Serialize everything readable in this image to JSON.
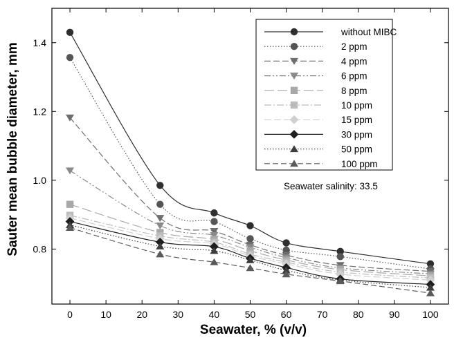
{
  "chart_data": {
    "type": "line",
    "xlabel": "Seawater, % (v/v)",
    "ylabel": "Sauter mean bubble diameter, mm",
    "xlim": [
      -5,
      105
    ],
    "ylim": [
      0.64,
      1.5
    ],
    "xticks": [
      0,
      10,
      20,
      30,
      40,
      50,
      60,
      70,
      80,
      90,
      100
    ],
    "yticks": [
      0.8,
      1.0,
      1.2,
      1.4
    ],
    "x": [
      0,
      25,
      40,
      50,
      60,
      75,
      100
    ],
    "grid": false,
    "legend_position": "top-right",
    "annotation": "Seawater salinity: 33.5",
    "series": [
      {
        "name": "without MIBC",
        "values": [
          1.43,
          0.985,
          0.905,
          0.868,
          0.818,
          0.793,
          0.757
        ],
        "color": "#2f2f2f",
        "marker": "circle",
        "dash": ""
      },
      {
        "name": "2 ppm",
        "values": [
          1.357,
          0.93,
          0.88,
          0.83,
          0.797,
          0.778,
          0.742
        ],
        "color": "#555555",
        "marker": "circle",
        "dash": "1.5,2.5"
      },
      {
        "name": "4 ppm",
        "values": [
          1.182,
          0.89,
          0.852,
          0.812,
          0.782,
          0.753,
          0.735
        ],
        "color": "#6e6e6e",
        "marker": "triangle-down",
        "dash": "9,4"
      },
      {
        "name": "6 ppm",
        "values": [
          1.028,
          0.868,
          0.84,
          0.805,
          0.775,
          0.745,
          0.728
        ],
        "color": "#8a8a8a",
        "marker": "triangle-down",
        "dash": "9,3,2,3,2,3"
      },
      {
        "name": "8 ppm",
        "values": [
          0.93,
          0.848,
          0.828,
          0.795,
          0.768,
          0.74,
          0.722
        ],
        "color": "#a8a8a8",
        "marker": "square",
        "dash": "14,5"
      },
      {
        "name": "10 ppm",
        "values": [
          0.898,
          0.838,
          0.82,
          0.785,
          0.762,
          0.733,
          0.716
        ],
        "color": "#bcbcbc",
        "marker": "square",
        "dash": "10,3,2,3"
      },
      {
        "name": "15 ppm",
        "values": [
          0.89,
          0.83,
          0.815,
          0.78,
          0.757,
          0.727,
          0.71
        ],
        "color": "#d0d0d0",
        "marker": "diamond",
        "dash": "10,4"
      },
      {
        "name": "30 ppm",
        "values": [
          0.88,
          0.82,
          0.807,
          0.773,
          0.746,
          0.713,
          0.697
        ],
        "color": "#1e1e1e",
        "marker": "diamond",
        "dash": ""
      },
      {
        "name": "50 ppm",
        "values": [
          0.87,
          0.808,
          0.795,
          0.768,
          0.738,
          0.71,
          0.688
        ],
        "color": "#3c3c3c",
        "marker": "triangle-up",
        "dash": "1.5,2.5"
      },
      {
        "name": "100 ppm",
        "values": [
          0.862,
          0.785,
          0.762,
          0.745,
          0.727,
          0.707,
          0.672
        ],
        "color": "#5a5a5a",
        "marker": "triangle-up",
        "dash": "8,4"
      }
    ]
  }
}
